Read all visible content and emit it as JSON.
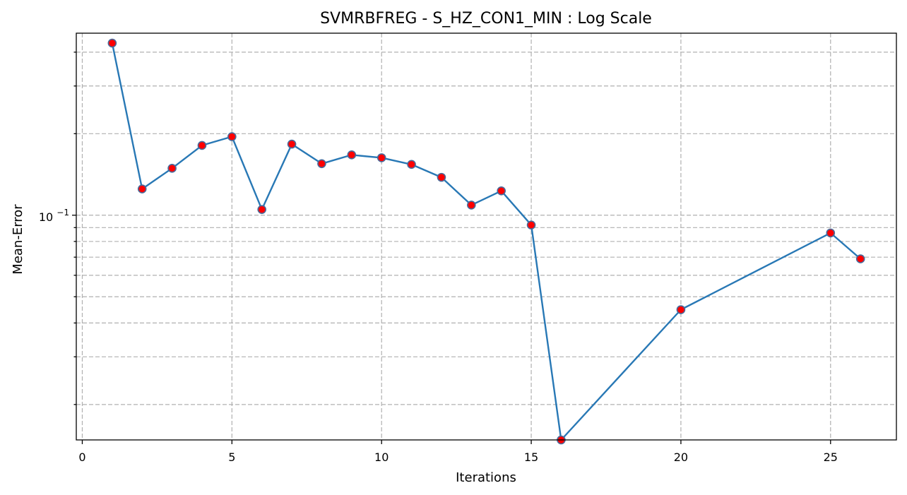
{
  "chart_data": {
    "type": "line",
    "title": "SVMRBFREG - S_HZ_CON1_MIN : Log Scale",
    "xlabel": "Iterations",
    "ylabel": "Mean-Error",
    "yscale": "log",
    "grid": true,
    "xlim": [
      -0.2,
      27.2
    ],
    "ylim": [
      0.0148,
      0.47
    ],
    "x_ticks": [
      0,
      5,
      10,
      15,
      20,
      25
    ],
    "x_tick_labels": [
      "0",
      "5",
      "10",
      "15",
      "20",
      "25"
    ],
    "y_major_tick": {
      "value": 0.1,
      "base": "10",
      "exponent": "−1"
    },
    "y_minor_ticks": [
      0.02,
      0.03,
      0.04,
      0.05,
      0.06,
      0.07,
      0.08,
      0.09,
      0.2,
      0.3,
      0.4
    ],
    "series": [
      {
        "x": [
          1,
          2,
          3,
          4,
          5,
          6,
          7,
          8,
          9,
          10,
          11,
          12,
          13,
          14,
          15,
          16,
          20,
          25,
          26
        ],
        "y": [
          0.432,
          0.125,
          0.149,
          0.181,
          0.195,
          0.105,
          0.183,
          0.155,
          0.167,
          0.163,
          0.154,
          0.138,
          0.109,
          0.123,
          0.092,
          0.0148,
          0.0448,
          0.086,
          0.069
        ],
        "line_color": "#2878b5",
        "marker_face": "#ff0000",
        "marker_edge": "#4a6a9a"
      }
    ]
  }
}
